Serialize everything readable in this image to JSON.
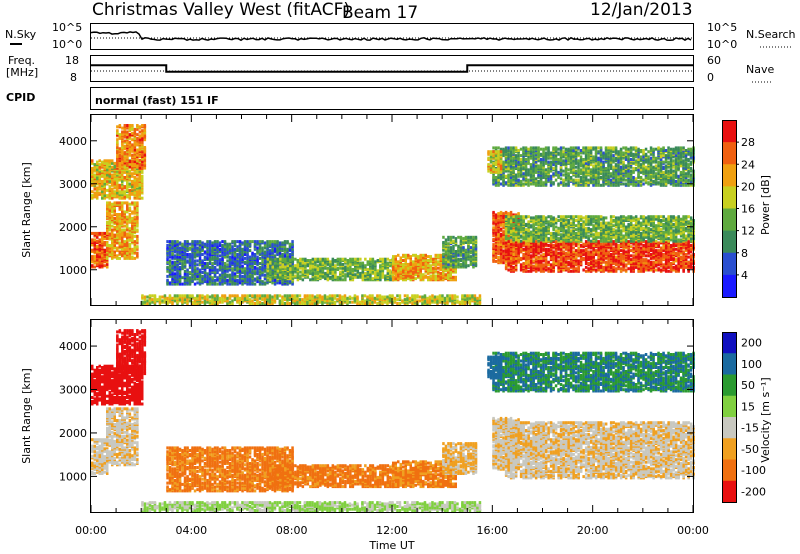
{
  "header": {
    "title": "Christmas Valley West (fitACF)",
    "beam": "Beam 17",
    "date": "12/Jan/2013"
  },
  "noise_panel": {
    "left_label": "N.Sky",
    "right_label": "N.Search",
    "left_ticks": [
      "10^5",
      "10^0"
    ],
    "right_ticks": [
      "10^5",
      "10^0"
    ]
  },
  "freq_panel": {
    "left_label_line1": "Freq.",
    "left_label_line2": "[MHz]",
    "right_label": "Nave",
    "left_ticks": [
      "18",
      "8"
    ],
    "right_ticks": [
      "60",
      "0"
    ],
    "freq_steps": [
      {
        "x": [
          0,
          3
        ],
        "mhz": 14.2
      },
      {
        "x": [
          3,
          15
        ],
        "mhz": 10.8
      },
      {
        "x": [
          15,
          24
        ],
        "mhz": 14.2
      }
    ]
  },
  "cpid": {
    "label": "CPID",
    "text": "normal (fast) 151 IF"
  },
  "xaxis": {
    "label": "Time UT",
    "ticks": [
      "00:00",
      "04:00",
      "08:00",
      "12:00",
      "16:00",
      "20:00",
      "00:00"
    ]
  },
  "power_panel": {
    "ylabel": "Slant Range [km]",
    "yticks": [
      "1000",
      "2000",
      "3000",
      "4000"
    ],
    "colorbar_label": "Power [dB]",
    "colorbar_ticks": [
      "4",
      "8",
      "12",
      "16",
      "20",
      "24",
      "28"
    ]
  },
  "velocity_panel": {
    "ylabel": "Slant Range [km]",
    "yticks": [
      "1000",
      "2000",
      "3000",
      "4000"
    ],
    "colorbar_label": "Velocity [m s⁻¹]",
    "colorbar_ticks": [
      "200",
      "100",
      "50",
      "15",
      "-15",
      "-50",
      "-100",
      "-200"
    ]
  },
  "chart_data": {
    "type": "heatmap",
    "x_range_hours": [
      0,
      24
    ],
    "y_range_km": [
      180,
      4600
    ],
    "power_scale_db": [
      0,
      32
    ],
    "velocity_scale": [
      -250,
      250
    ],
    "power_colors": [
      "#1a1aff",
      "#2a4fd0",
      "#3a8a5a",
      "#5faa3f",
      "#c8d020",
      "#f0a010",
      "#f06010",
      "#e81010"
    ],
    "velocity_colors": [
      "#1010c0",
      "#1a6aa0",
      "#2a9a30",
      "#80d040",
      "#c8c8c0",
      "#f0a020",
      "#f07010",
      "#e81010"
    ],
    "regions": [
      {
        "t": [
          0.0,
          0.6
        ],
        "r": [
          1100,
          1900
        ],
        "power": 26,
        "velocity": -10
      },
      {
        "t": [
          0.6,
          1.8
        ],
        "r": [
          1300,
          2600
        ],
        "power": 22,
        "velocity": -10
      },
      {
        "t": [
          0.0,
          2.0
        ],
        "r": [
          2700,
          3600
        ],
        "power": 20,
        "velocity": -190
      },
      {
        "t": [
          1.0,
          2.1
        ],
        "r": [
          3400,
          4400
        ],
        "power": 24,
        "velocity": -190
      },
      {
        "t": [
          3.0,
          8.0
        ],
        "r": [
          700,
          1700
        ],
        "power": 8,
        "velocity": -60
      },
      {
        "t": [
          7.0,
          12.0
        ],
        "r": [
          800,
          1300
        ],
        "power": 14,
        "velocity": -60
      },
      {
        "t": [
          12.0,
          14.5
        ],
        "r": [
          800,
          1400
        ],
        "power": 22,
        "velocity": -55
      },
      {
        "t": [
          14.0,
          15.3
        ],
        "r": [
          1100,
          1800
        ],
        "power": 12,
        "velocity": -20
      },
      {
        "t": [
          2.0,
          15.5
        ],
        "r": [
          250,
          450
        ],
        "power": 18,
        "velocity": 20
      },
      {
        "t": [
          16.0,
          17.0
        ],
        "r": [
          1200,
          2400
        ],
        "power": 26,
        "velocity": -10
      },
      {
        "t": [
          16.5,
          24.0
        ],
        "r": [
          1000,
          1700
        ],
        "power": 28,
        "velocity": -10
      },
      {
        "t": [
          16.5,
          24.0
        ],
        "r": [
          1700,
          2300
        ],
        "power": 14,
        "velocity": -10
      },
      {
        "t": [
          16.0,
          24.0
        ],
        "r": [
          3000,
          3900
        ],
        "power": 12,
        "velocity": 100
      },
      {
        "t": [
          15.8,
          16.3
        ],
        "r": [
          3300,
          3800
        ],
        "power": 20,
        "velocity": 150
      }
    ]
  }
}
